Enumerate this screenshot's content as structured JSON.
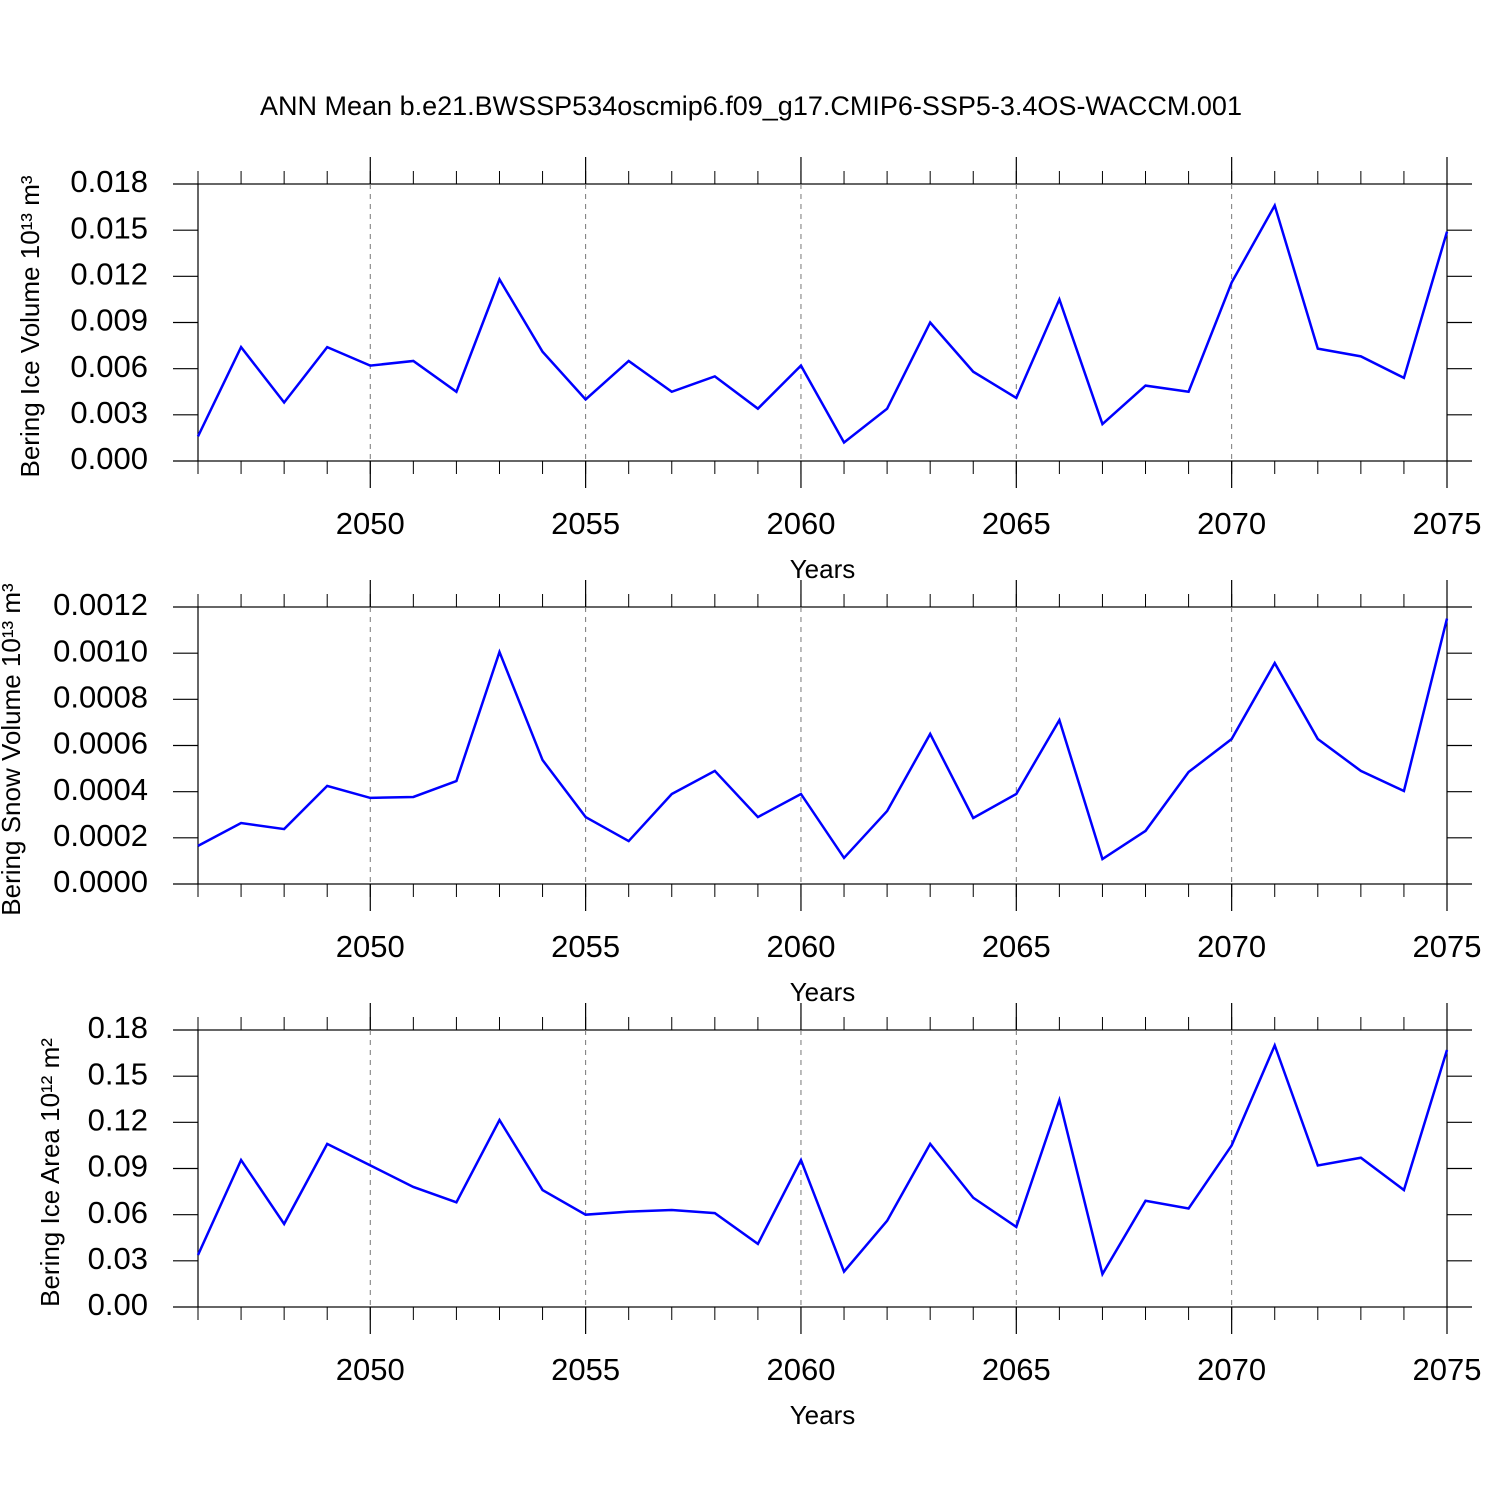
{
  "title": "ANN Mean b.e21.BWSSP534oscmip6.f09_g17.CMIP6-SSP5-3.4OS-WACCM.001",
  "chart_data": [
    {
      "type": "line",
      "ylabel": "Bering Ice Volume 10¹³ m³",
      "xlabel": "Years",
      "color": "#0000ff",
      "grid": true,
      "x": [
        2046,
        2047,
        2048,
        2049,
        2050,
        2051,
        2052,
        2053,
        2054,
        2055,
        2056,
        2057,
        2058,
        2059,
        2060,
        2061,
        2062,
        2063,
        2064,
        2065,
        2066,
        2067,
        2068,
        2069,
        2070,
        2071,
        2072,
        2073,
        2074,
        2075
      ],
      "values": [
        0.0016,
        0.0074,
        0.0038,
        0.0074,
        0.0062,
        0.0065,
        0.0045,
        0.0118,
        0.0071,
        0.004,
        0.0065,
        0.0045,
        0.0055,
        0.0034,
        0.0062,
        0.0012,
        0.0034,
        0.009,
        0.0058,
        0.0041,
        0.0105,
        0.0024,
        0.0049,
        0.0045,
        0.0116,
        0.0166,
        0.0073,
        0.0068,
        0.0054,
        0.0149
      ],
      "xlim": [
        2046,
        2075
      ],
      "xticks": [
        2050,
        2055,
        2060,
        2065,
        2070,
        2075
      ],
      "ylim": [
        0,
        0.018
      ],
      "yticks": [
        {
          "value": 0,
          "label": "0.000"
        },
        0.003,
        0.006,
        0.009,
        0.012,
        0.015,
        0.018
      ]
    },
    {
      "type": "line",
      "ylabel": "Bering Snow Volume 10¹³ m³",
      "xlabel": "Years",
      "color": "#0000ff",
      "grid": true,
      "x": [
        2046,
        2047,
        2048,
        2049,
        2050,
        2051,
        2052,
        2053,
        2054,
        2055,
        2056,
        2057,
        2058,
        2059,
        2060,
        2061,
        2062,
        2063,
        2064,
        2065,
        2066,
        2067,
        2068,
        2069,
        2070,
        2071,
        2072,
        2073,
        2074,
        2075
      ],
      "values": [
        0.000165,
        0.000264,
        0.000238,
        0.000425,
        0.000373,
        0.000377,
        0.000446,
        0.001005,
        0.000537,
        0.00029,
        0.000186,
        0.00039,
        0.00049,
        0.00029,
        0.00039,
        0.000113,
        0.000316,
        0.00065,
        0.000286,
        0.00039,
        0.00071,
        0.000108,
        0.00023,
        0.000485,
        0.000628,
        0.000957,
        0.000628,
        0.00049,
        0.000403,
        0.00115
      ],
      "xlim": [
        2046,
        2075
      ],
      "xticks": [
        2050,
        2055,
        2060,
        2065,
        2070,
        2075
      ],
      "ylim": [
        0,
        0.0012
      ],
      "yticks": [
        {
          "value": 0,
          "label": "0.0000"
        },
        0.0002,
        0.0004,
        0.0006,
        0.0008,
        {
          "value": 0.001,
          "label": "0.0010"
        },
        0.0012
      ]
    },
    {
      "type": "line",
      "ylabel": "Bering Ice Area 10¹² m²",
      "xlabel": "Years",
      "color": "#0000ff",
      "grid": true,
      "x": [
        2046,
        2047,
        2048,
        2049,
        2050,
        2051,
        2052,
        2053,
        2054,
        2055,
        2056,
        2057,
        2058,
        2059,
        2060,
        2061,
        2062,
        2063,
        2064,
        2065,
        2066,
        2067,
        2068,
        2069,
        2070,
        2071,
        2072,
        2073,
        2074,
        2075
      ],
      "values": [
        0.0338,
        0.0955,
        0.054,
        0.106,
        0.092,
        0.078,
        0.068,
        0.1215,
        0.076,
        0.06,
        0.062,
        0.063,
        0.061,
        0.041,
        0.0955,
        0.023,
        0.056,
        0.106,
        0.071,
        0.052,
        0.1345,
        0.0214,
        0.069,
        0.064,
        0.105,
        0.17,
        0.092,
        0.097,
        0.076,
        0.167
      ],
      "xlim": [
        2046,
        2075
      ],
      "xticks": [
        2050,
        2055,
        2060,
        2065,
        2070,
        2075
      ],
      "ylim": [
        0,
        0.18
      ],
      "yticks": [
        {
          "value": 0,
          "label": "0.00"
        },
        0.03,
        0.06,
        0.09,
        0.12,
        0.15,
        0.18
      ]
    }
  ]
}
